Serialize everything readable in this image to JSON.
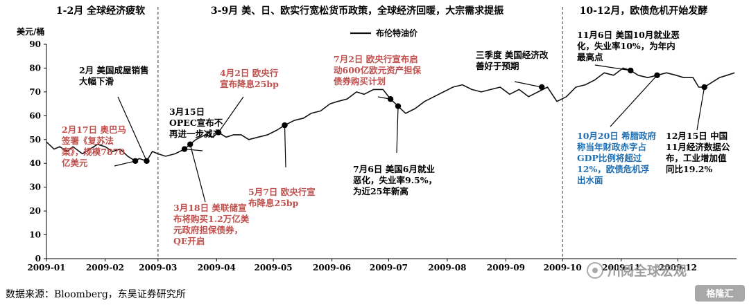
{
  "colors": {
    "black": "#000000",
    "red": "#c0504d",
    "blue": "#1f6fb2",
    "line": "#111111",
    "axis": "#000000",
    "divider": "#555555",
    "watermark": "#9a9a9a"
  },
  "phases": [
    "1-2月  全球经济疲软",
    "3-9月  美、日、欧实行宽松货币政策，全球经济回暖，大宗需求提振",
    "10-12月，欧债危机开始发酵"
  ],
  "source": "数据来源：Bloomberg，东吴证券研究所",
  "watermark": {
    "text": "川阅全球宏观",
    "badge": "格隆汇"
  },
  "chart_data": {
    "type": "line",
    "ylabel": "美元/桶",
    "ylim": [
      0,
      90
    ],
    "yticks": [
      0,
      10,
      20,
      30,
      40,
      50,
      60,
      70,
      80,
      90
    ],
    "xlim": [
      "2009-01",
      "2010-01"
    ],
    "xticks": [
      "2009-01",
      "2009-02",
      "2009-03",
      "2009-04",
      "2009-05",
      "2009-06",
      "2009-07",
      "2009-08",
      "2009-09",
      "2009-10",
      "2009-11",
      "2009-12"
    ],
    "legend": {
      "position": "top-center",
      "label": "布伦特油价"
    },
    "phase_dividers": [
      "2009-03-01",
      "2009-10-01"
    ],
    "series": [
      {
        "name": "布伦特油价",
        "x": [
          "2009-01-01",
          "2009-01-05",
          "2009-01-08",
          "2009-01-12",
          "2009-01-15",
          "2009-01-20",
          "2009-01-24",
          "2009-01-28",
          "2009-02-01",
          "2009-02-05",
          "2009-02-09",
          "2009-02-13",
          "2009-02-17",
          "2009-02-19",
          "2009-02-23",
          "2009-02-26",
          "2009-03-01",
          "2009-03-05",
          "2009-03-10",
          "2009-03-15",
          "2009-03-18",
          "2009-03-21",
          "2009-03-26",
          "2009-03-30",
          "2009-04-02",
          "2009-04-06",
          "2009-04-10",
          "2009-04-14",
          "2009-04-18",
          "2009-04-23",
          "2009-04-28",
          "2009-05-03",
          "2009-05-07",
          "2009-05-12",
          "2009-05-17",
          "2009-05-21",
          "2009-05-26",
          "2009-05-31",
          "2009-06-04",
          "2009-06-09",
          "2009-06-14",
          "2009-06-18",
          "2009-06-23",
          "2009-06-28",
          "2009-07-02",
          "2009-07-06",
          "2009-07-10",
          "2009-07-15",
          "2009-07-20",
          "2009-07-25",
          "2009-07-30",
          "2009-08-04",
          "2009-08-09",
          "2009-08-14",
          "2009-08-19",
          "2009-08-24",
          "2009-08-29",
          "2009-09-03",
          "2009-09-08",
          "2009-09-13",
          "2009-09-18",
          "2009-09-23",
          "2009-09-28",
          "2009-10-03",
          "2009-10-08",
          "2009-10-13",
          "2009-10-18",
          "2009-10-23",
          "2009-10-28",
          "2009-11-02",
          "2009-11-06",
          "2009-11-10",
          "2009-11-15",
          "2009-11-20",
          "2009-11-25",
          "2009-11-30",
          "2009-12-04",
          "2009-12-09",
          "2009-12-12",
          "2009-12-15",
          "2009-12-19",
          "2009-12-23",
          "2009-12-27",
          "2009-12-31"
        ],
        "values": [
          49,
          46,
          47,
          45,
          47,
          44,
          46,
          48,
          47,
          45,
          46,
          43,
          41,
          42,
          41,
          45,
          44,
          43,
          44,
          46,
          48,
          50,
          52,
          51,
          53,
          51,
          52,
          52,
          50,
          51,
          52,
          54,
          56,
          58,
          59,
          61,
          62,
          65,
          66,
          67,
          70,
          69,
          71,
          71,
          67,
          64,
          61,
          63,
          66,
          68,
          70,
          72,
          73,
          71,
          70,
          71,
          72,
          69,
          71,
          68,
          70,
          72,
          66,
          68,
          72,
          73,
          75,
          78,
          77,
          80,
          79,
          77,
          76,
          77,
          78,
          77,
          76,
          76,
          72,
          72,
          74,
          76,
          77,
          78
        ]
      }
    ],
    "markers": [
      {
        "x": "2009-02-17",
        "y": 41
      },
      {
        "x": "2009-02-23",
        "y": 41
      },
      {
        "x": "2009-03-15",
        "y": 46
      },
      {
        "x": "2009-03-18",
        "y": 48
      },
      {
        "x": "2009-04-02",
        "y": 53
      },
      {
        "x": "2009-05-07",
        "y": 56
      },
      {
        "x": "2009-07-02",
        "y": 67
      },
      {
        "x": "2009-07-06",
        "y": 64
      },
      {
        "x": "2009-09-20",
        "y": 72
      },
      {
        "x": "2009-11-06",
        "y": 79
      },
      {
        "x": "2009-11-20",
        "y": 77
      },
      {
        "x": "2009-12-15",
        "y": 72
      }
    ],
    "annotations": [
      {
        "color": "black",
        "lines": [
          "2月  美国成屋销售",
          "大幅下滑"
        ]
      },
      {
        "color": "red",
        "lines": [
          "2月17日  奥巴马",
          "签署《复苏法",
          "案》，规模7870",
          "亿美元"
        ]
      },
      {
        "color": "black",
        "lines": [
          "3月15日",
          "OPEC宣布不",
          "再进一步减产"
        ]
      },
      {
        "color": "red",
        "lines": [
          "3月18日  美联储宣",
          "布将购买1.2万亿美",
          "元政府担保债券，",
          "QE开启"
        ]
      },
      {
        "color": "red",
        "lines": [
          "4月2日  欧央行",
          "宣布降息25bp"
        ]
      },
      {
        "color": "red",
        "lines": [
          "5月7日  欧央行宣",
          "布降息25bp"
        ]
      },
      {
        "color": "red",
        "lines": [
          "7月2日  欧央行宣布启",
          "动600亿欧元资产担保",
          "债券购买计划"
        ]
      },
      {
        "color": "black",
        "lines": [
          "7月6日  美国6月就业",
          "恶化，失业率9.5%，",
          "为近25年新高"
        ]
      },
      {
        "color": "black",
        "lines": [
          "三季度  美国经济改",
          "善好于预期"
        ]
      },
      {
        "color": "black",
        "lines": [
          "11月6日  美国10月就业恶",
          "化，失业率10%，为年内",
          "最高点"
        ]
      },
      {
        "color": "blue",
        "lines": [
          "10月20日  希腊政府",
          "称当年财政赤字占",
          "GDP比例将超过",
          "12%，欧债危机浮",
          "出水面"
        ]
      },
      {
        "color": "black",
        "lines": [
          "12月15日  中国",
          "11月经济数据公",
          "布，工业增加值",
          "同比19.2%"
        ]
      }
    ]
  }
}
